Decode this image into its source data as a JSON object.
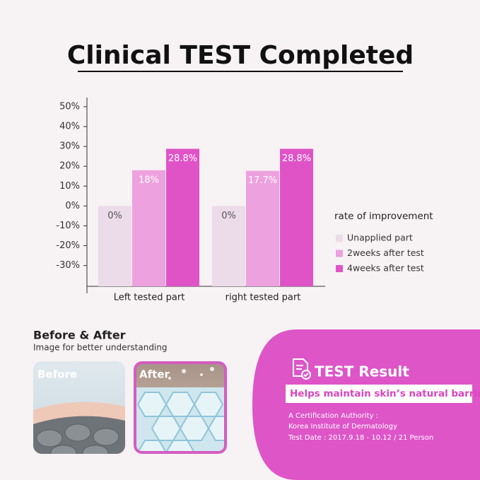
{
  "title": "Clinical TEST Completed",
  "chart_data": {
    "type": "bar",
    "categories": [
      "Left tested part",
      "right tested part"
    ],
    "series": [
      {
        "name": "Unapplied part",
        "color": "#ecdbe9",
        "values": [
          0,
          0
        ],
        "value_labels": [
          "0%",
          "0%"
        ]
      },
      {
        "name": "2weeks after test",
        "color": "#eda1de",
        "values": [
          18,
          17.7
        ],
        "value_labels": [
          "18%",
          "17.7%"
        ]
      },
      {
        "name": "4weeks after test",
        "color": "#e053c7",
        "values": [
          28.8,
          28.8
        ],
        "value_labels": [
          "28.8%",
          "28.8%"
        ]
      }
    ],
    "legend_title": "rate of improvement",
    "ylim": [
      -44,
      54.6
    ],
    "yticks": [
      {
        "value": 50,
        "label": "50%"
      },
      {
        "value": 40,
        "label": "40%"
      },
      {
        "value": 30,
        "label": "30%"
      },
      {
        "value": 20,
        "label": "20%"
      },
      {
        "value": 10,
        "label": "10%"
      },
      {
        "value": 0,
        "label": "0%"
      },
      {
        "value": -10,
        "label": "-10%"
      },
      {
        "value": -20,
        "label": "-20%"
      },
      {
        "value": -30,
        "label": "-30%"
      }
    ]
  },
  "before_after": {
    "title": "Before & After",
    "subtitle": "Image for better understanding",
    "before_label": "Before",
    "after_label": "After"
  },
  "test_result": {
    "title": "TEST Result",
    "claim": "Helps maintain skin’s natural barrier",
    "lines": [
      "A Certification Authority :",
      "Korea Institute of Dermatology",
      "Test Date : 2017.9.18 - 10.12 / 21 Person"
    ]
  }
}
